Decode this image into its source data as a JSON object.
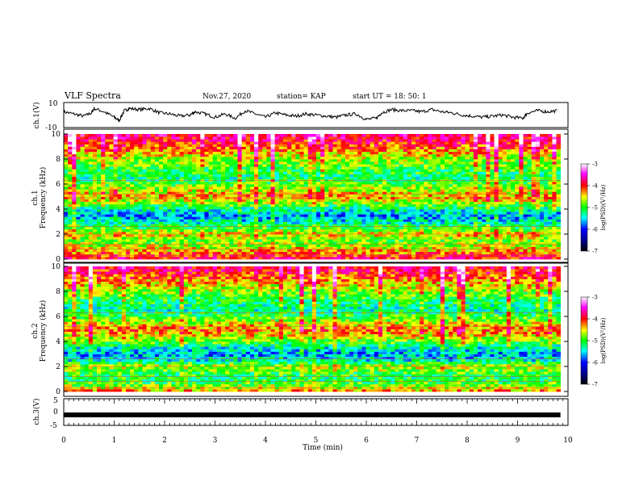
{
  "header": {
    "title": "VLF Spectra",
    "date": "Nov.27, 2020",
    "station": "station= KAP",
    "start": "start  UT  =   18: 50: 1"
  },
  "chart_data": [
    {
      "type": "line",
      "name": "ch1-voltage",
      "ylabel": "ch.1(V)",
      "ylim": [
        -10,
        10
      ],
      "ytick_labels": [
        "10",
        "-10"
      ],
      "xlim": [
        0,
        10
      ],
      "series": [
        {
          "x": [
            0,
            0.2,
            0.4,
            0.55,
            0.6,
            0.8,
            1.0,
            1.1,
            1.2,
            1.3,
            1.5,
            1.7,
            1.9,
            2.1,
            2.3,
            2.5,
            2.6,
            2.8,
            3.0,
            3.2,
            3.4,
            3.6,
            3.8,
            4.0,
            4.2,
            4.4,
            4.6,
            4.8,
            5.0,
            5.2,
            5.4,
            5.6,
            5.8,
            6.0,
            6.2,
            6.3,
            6.5,
            6.7,
            6.9,
            7.1,
            7.3,
            7.5,
            7.7,
            7.9,
            8.1,
            8.3,
            8.5,
            8.7,
            8.9,
            9.1,
            9.2,
            9.4,
            9.6,
            9.8
          ],
          "y": [
            3,
            1,
            -1,
            2,
            6,
            3,
            -2,
            -5,
            4,
            6,
            5,
            6,
            2,
            1,
            -1,
            0,
            3,
            1,
            -2,
            1,
            -3,
            4,
            1,
            -2,
            2,
            0,
            -1,
            1,
            0,
            -1,
            -2,
            0,
            1,
            -4,
            -3,
            2,
            5,
            4,
            4,
            3,
            5,
            3,
            2,
            0,
            -1,
            -2,
            -1,
            0,
            -2,
            -3,
            2,
            4,
            3,
            4
          ]
        }
      ]
    },
    {
      "type": "heatmap",
      "name": "ch1-spectrogram",
      "ylabel": "ch.1\nFrequency (kHz)",
      "ylim": [
        0,
        10
      ],
      "ytick_labels": [
        "0",
        "2",
        "4",
        "6",
        "8",
        "10"
      ],
      "xlim": [
        0,
        10
      ],
      "colorbar": {
        "label": "log(PSD)(V²/Hz)",
        "ticks": [
          "-3",
          "-4",
          "-5",
          "-6",
          "-7"
        ],
        "range": [
          -7,
          -3
        ]
      },
      "band_profile_freq_khz": [
        0,
        0.5,
        1,
        1.5,
        2,
        2.5,
        3,
        3.5,
        4,
        4.5,
        5,
        5.5,
        6,
        6.5,
        7,
        7.5,
        8,
        8.5,
        9,
        9.5,
        10
      ],
      "band_profile_log_psd": [
        -3.8,
        -4.2,
        -4.6,
        -4.9,
        -4.4,
        -5.0,
        -5.4,
        -5.7,
        -5.3,
        -4.8,
        -4.3,
        -4.6,
        -4.9,
        -5.2,
        -5.1,
        -4.9,
        -4.7,
        -4.4,
        -4.1,
        -3.9,
        -3.7
      ]
    },
    {
      "type": "heatmap",
      "name": "ch2-spectrogram",
      "ylabel": "ch.2\nFrequency (kHz)",
      "ylim": [
        0,
        10
      ],
      "ytick_labels": [
        "0",
        "2",
        "4",
        "6",
        "8",
        "10"
      ],
      "xlim": [
        0,
        10
      ],
      "colorbar": {
        "label": "log(PSD)(V²/Hz)",
        "ticks": [
          "-3",
          "-4",
          "-5",
          "-6",
          "-7"
        ],
        "range": [
          -7,
          -3
        ]
      },
      "band_profile_freq_khz": [
        0,
        0.5,
        1,
        1.5,
        2,
        2.5,
        3,
        3.5,
        4,
        4.5,
        5,
        5.5,
        6,
        6.5,
        7,
        7.5,
        8,
        8.5,
        9,
        9.5,
        10
      ],
      "band_profile_log_psd": [
        -4.2,
        -4.8,
        -5.2,
        -5.0,
        -4.6,
        -5.4,
        -5.7,
        -5.4,
        -4.9,
        -4.5,
        -4.2,
        -4.6,
        -5.0,
        -5.3,
        -5.2,
        -5.0,
        -4.8,
        -4.5,
        -4.2,
        -4.0,
        -3.8
      ]
    },
    {
      "type": "line",
      "name": "ch3-voltage",
      "ylabel": "ch.3(V)",
      "ylim": [
        -5,
        5
      ],
      "ytick_labels": [
        "5",
        "0",
        "-5"
      ],
      "xlim": [
        0,
        10
      ],
      "xlabel": "Time  (min)",
      "xtick_labels": [
        "0",
        "1",
        "2",
        "3",
        "4",
        "5",
        "6",
        "7",
        "8",
        "9",
        "10"
      ],
      "series": [
        {
          "x": [
            0,
            9.85
          ],
          "y": [
            -1.2,
            -1.2
          ]
        }
      ]
    }
  ],
  "colors": {
    "trace": "#000000",
    "colormap": [
      "#000000",
      "#00008b",
      "#0000ff",
      "#00ffff",
      "#00ff00",
      "#ffff00",
      "#ff0000",
      "#ff00ff",
      "#ffffff"
    ]
  }
}
